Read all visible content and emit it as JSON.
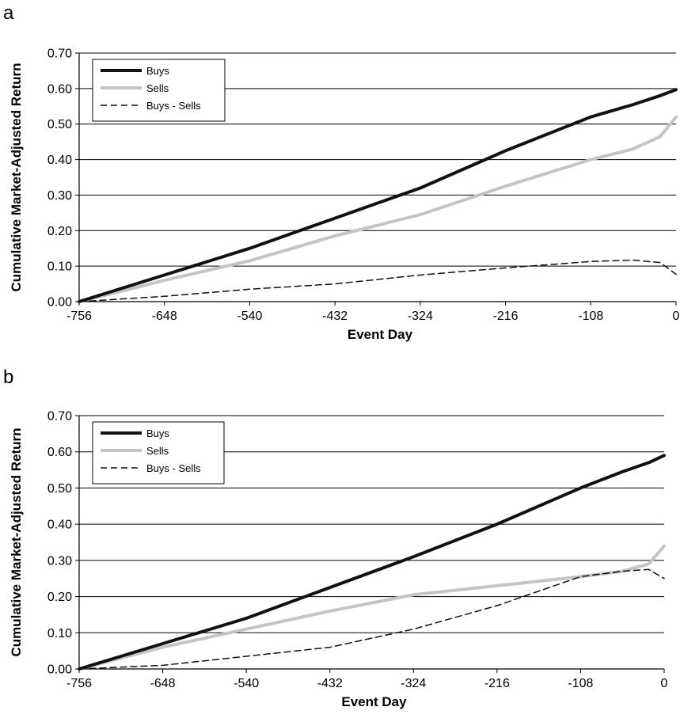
{
  "chart_data": [
    {
      "type": "line",
      "panel_label": "a",
      "xlabel": "Event Day",
      "ylabel": "Cumulative Market-Adjusted Return",
      "xlim": [
        -756,
        0
      ],
      "ylim": [
        0,
        0.7
      ],
      "xticks": [
        "-756",
        "-648",
        "-540",
        "-432",
        "-324",
        "-216",
        "-108",
        "0"
      ],
      "yticks": [
        "0.00",
        "0.10",
        "0.20",
        "0.30",
        "0.40",
        "0.50",
        "0.60",
        "0.70"
      ],
      "grid": "horizontal",
      "legend_position": "top-left",
      "x": [
        -756,
        -648,
        -540,
        -432,
        -324,
        -216,
        -108,
        -54,
        -20,
        0
      ],
      "series": [
        {
          "name": "Buys",
          "color": "#111111",
          "style": "solid-thick",
          "values": [
            0.0,
            0.075,
            0.15,
            0.235,
            0.32,
            0.425,
            0.52,
            0.555,
            0.58,
            0.597
          ]
        },
        {
          "name": "Sells",
          "color": "#c4c4c4",
          "style": "solid-thick",
          "values": [
            0.0,
            0.06,
            0.115,
            0.185,
            0.245,
            0.325,
            0.4,
            0.43,
            0.465,
            0.52
          ]
        },
        {
          "name": "Buys - Sells",
          "color": "#111111",
          "style": "dashed",
          "values": [
            0.0,
            0.015,
            0.035,
            0.05,
            0.075,
            0.095,
            0.113,
            0.117,
            0.11,
            0.077
          ]
        }
      ]
    },
    {
      "type": "line",
      "panel_label": "b",
      "xlabel": "Event Day",
      "ylabel": "Cumulative Market-Adjusted Return",
      "xlim": [
        -756,
        0
      ],
      "ylim": [
        0,
        0.7
      ],
      "xticks": [
        "-756",
        "-648",
        "-540",
        "-432",
        "-324",
        "-216",
        "-108",
        "0"
      ],
      "yticks": [
        "0.00",
        "0.10",
        "0.20",
        "0.30",
        "0.40",
        "0.50",
        "0.60",
        "0.70"
      ],
      "grid": "horizontal",
      "legend_position": "top-left",
      "x": [
        -756,
        -648,
        -540,
        -432,
        -324,
        -216,
        -108,
        -54,
        -20,
        0
      ],
      "series": [
        {
          "name": "Buys",
          "color": "#111111",
          "style": "solid-thick",
          "values": [
            0.0,
            0.07,
            0.14,
            0.225,
            0.31,
            0.4,
            0.5,
            0.545,
            0.57,
            0.59
          ]
        },
        {
          "name": "Sells",
          "color": "#c4c4c4",
          "style": "solid-thick",
          "values": [
            0.0,
            0.06,
            0.11,
            0.16,
            0.205,
            0.23,
            0.255,
            0.27,
            0.29,
            0.34
          ]
        },
        {
          "name": "Buys - Sells",
          "color": "#111111",
          "style": "dashed",
          "values": [
            0.0,
            0.01,
            0.035,
            0.06,
            0.11,
            0.175,
            0.255,
            0.27,
            0.275,
            0.25
          ]
        }
      ]
    }
  ]
}
